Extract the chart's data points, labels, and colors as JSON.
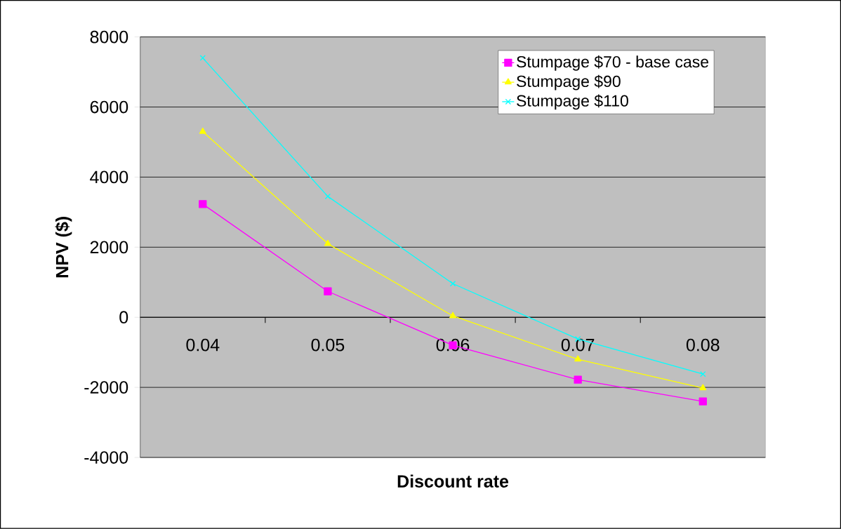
{
  "chart_data": {
    "type": "line",
    "xlabel": "Discount rate",
    "ylabel": "NPV ($)",
    "categories": [
      "0.04",
      "0.05",
      "0.06",
      "0.07",
      "0.08"
    ],
    "series": [
      {
        "name": "Stumpage $70 - base case",
        "color": "#ff00ff",
        "marker": "square",
        "values": [
          3230,
          740,
          -800,
          -1780,
          -2400
        ]
      },
      {
        "name": "Stumpage $90",
        "color": "#ffff00",
        "marker": "triangle",
        "values": [
          5300,
          2100,
          40,
          -1200,
          -2020
        ]
      },
      {
        "name": "Stumpage $110",
        "color": "#00ffff",
        "marker": "cross",
        "values": [
          7400,
          3450,
          960,
          -620,
          -1620
        ]
      }
    ],
    "ylim": [
      -4000,
      8000
    ],
    "yticks": [
      -4000,
      -2000,
      0,
      2000,
      4000,
      6000,
      8000
    ],
    "grid": "y",
    "legend": "top right"
  }
}
